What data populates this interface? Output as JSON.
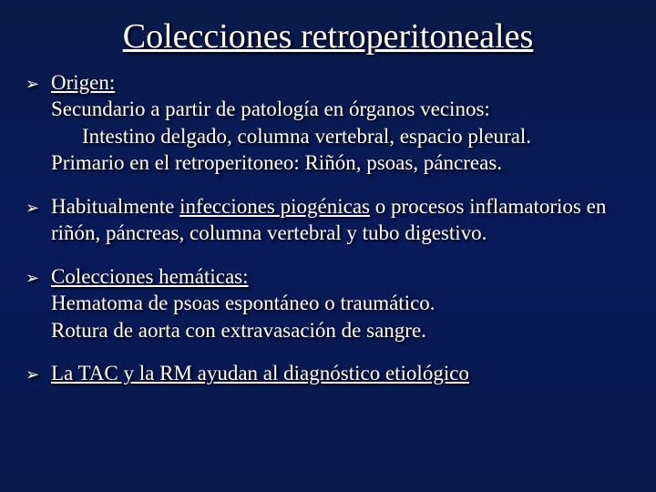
{
  "slide": {
    "title": "Colecciones retroperitoneales",
    "background_gradient_top": "#0a1a4a",
    "background_gradient_mid": "#0a1a5a",
    "background_gradient_bottom": "#08184a",
    "text_color": "#ffffff",
    "shadow_color": "#000000",
    "title_fontsize": 38,
    "body_fontsize": 23,
    "font_family": "Times New Roman",
    "arrow_glyph": "➢",
    "bullets": [
      {
        "heading_underlined": "Origen:",
        "lines": [
          {
            "text": "Secundario a partir de patología en órganos vecinos:",
            "indent": 0
          },
          {
            "text": "Intestino delgado, columna vertebral, espacio pleural.",
            "indent": 1
          },
          {
            "text": "Primario en el retroperitoneo: Riñón, psoas, páncreas.",
            "indent": 0
          }
        ]
      },
      {
        "rich": [
          {
            "text": "Habitualmente ",
            "under": false
          },
          {
            "text": "infecciones piogénicas",
            "under": true
          },
          {
            "text": " o procesos inflamatorios en riñón, páncreas, columna vertebral y tubo digestivo.",
            "under": false
          }
        ]
      },
      {
        "heading_underlined": "Colecciones hemáticas:",
        "lines": [
          {
            "text": "Hematoma de psoas espontáneo o traumático.",
            "indent": 0
          },
          {
            "text": "Rotura de aorta con extravasación de sangre.",
            "indent": 0
          }
        ]
      },
      {
        "rich": [
          {
            "text": "La TAC y la RM ayudan al diagnóstico etiológico",
            "under": true
          }
        ]
      }
    ]
  }
}
